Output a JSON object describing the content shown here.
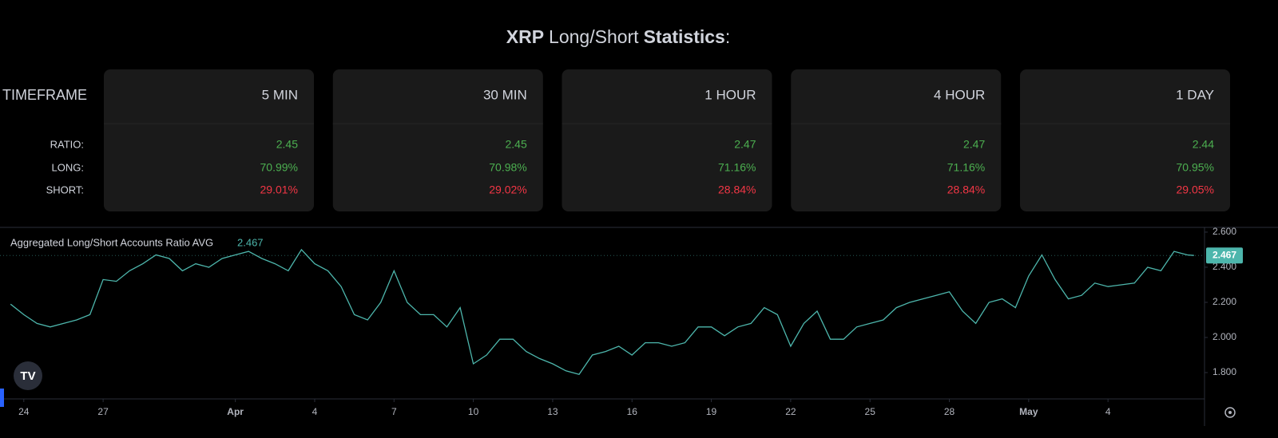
{
  "header": {
    "title_parts": [
      "XRP",
      "Long/Short",
      "Statistics",
      ":"
    ]
  },
  "table": {
    "header_label": "TIMEFRAME",
    "row_labels": [
      "RATIO:",
      "LONG:",
      "SHORT:"
    ],
    "row_colors": [
      "#4caf50",
      "#4caf50",
      "#f23645"
    ],
    "columns": [
      {
        "timeframe": "5 MIN",
        "values": [
          "2.45",
          "70.99%",
          "29.01%"
        ]
      },
      {
        "timeframe": "30 MIN",
        "values": [
          "2.45",
          "70.98%",
          "29.02%"
        ]
      },
      {
        "timeframe": "1 HOUR",
        "values": [
          "2.47",
          "71.16%",
          "28.84%"
        ]
      },
      {
        "timeframe": "4 HOUR",
        "values": [
          "2.47",
          "71.16%",
          "28.84%"
        ]
      },
      {
        "timeframe": "1 DAY",
        "values": [
          "2.44",
          "70.95%",
          "29.05%"
        ]
      }
    ]
  },
  "chart_data": {
    "type": "line",
    "title": "Aggregated Long/Short Accounts Ratio AVG",
    "last_value": 2.467,
    "color": "#4db6ac",
    "x": [
      -0.5,
      0,
      0.5,
      1,
      1.5,
      2,
      2.5,
      3,
      3.5,
      4,
      4.5,
      5,
      5.5,
      6,
      6.5,
      7,
      7.5,
      8,
      8.5,
      9,
      9.5,
      10,
      10.5,
      11,
      11.5,
      12,
      12.5,
      13,
      13.5,
      14,
      14.5,
      15,
      15.5,
      16,
      16.5,
      17,
      17.5,
      18,
      18.5,
      19,
      19.5,
      20,
      20.5,
      21,
      21.5,
      22,
      22.5,
      23,
      23.5,
      24,
      24.5,
      25,
      25.5,
      26,
      26.5,
      27,
      27.5,
      28,
      28.5,
      29,
      29.5,
      30,
      30.5,
      31,
      31.5,
      32,
      32.5,
      33,
      33.5,
      34,
      34.5,
      35,
      35.5,
      36,
      36.5,
      37,
      37.5,
      38,
      38.5,
      39,
      39.5,
      40,
      40.5,
      41,
      41.5,
      42,
      42.5,
      43,
      43.5,
      44,
      44.25
    ],
    "values": [
      2.19,
      2.13,
      2.08,
      2.06,
      2.08,
      2.1,
      2.13,
      2.33,
      2.32,
      2.38,
      2.42,
      2.47,
      2.45,
      2.38,
      2.42,
      2.4,
      2.45,
      2.47,
      2.49,
      2.45,
      2.42,
      2.38,
      2.5,
      2.42,
      2.38,
      2.29,
      2.13,
      2.1,
      2.2,
      2.38,
      2.2,
      2.13,
      2.13,
      2.06,
      2.17,
      1.85,
      1.9,
      1.99,
      1.99,
      1.92,
      1.88,
      1.85,
      1.81,
      1.79,
      1.9,
      1.92,
      1.95,
      1.9,
      1.97,
      1.97,
      1.95,
      1.97,
      2.06,
      2.06,
      2.01,
      2.06,
      2.08,
      2.17,
      2.13,
      1.95,
      2.08,
      2.15,
      1.99,
      1.99,
      2.06,
      2.08,
      2.1,
      2.17,
      2.2,
      2.22,
      2.24,
      2.26,
      2.15,
      2.08,
      2.2,
      2.22,
      2.17,
      2.35,
      2.47,
      2.33,
      2.22,
      2.24,
      2.31,
      2.29,
      2.3,
      2.31,
      2.4,
      2.38,
      2.49,
      2.47,
      2.467
    ],
    "xlim": [
      -0.9,
      44.65
    ],
    "xticks": [
      {
        "value": 0,
        "label": "24"
      },
      {
        "value": 3,
        "label": "27"
      },
      {
        "value": 8,
        "label": "Apr"
      },
      {
        "value": 11,
        "label": "4"
      },
      {
        "value": 14,
        "label": "7"
      },
      {
        "value": 17,
        "label": "10"
      },
      {
        "value": 20,
        "label": "13"
      },
      {
        "value": 23,
        "label": "16"
      },
      {
        "value": 26,
        "label": "19"
      },
      {
        "value": 29,
        "label": "22"
      },
      {
        "value": 32,
        "label": "25"
      },
      {
        "value": 35,
        "label": "28"
      },
      {
        "value": 38,
        "label": "May"
      },
      {
        "value": 41,
        "label": "4"
      }
    ],
    "ylim": [
      1.65,
      2.627
    ],
    "yticks": [
      {
        "value": 1.8,
        "label": "1.800"
      },
      {
        "value": 2.0,
        "label": "2.000"
      },
      {
        "value": 2.2,
        "label": "2.200"
      },
      {
        "value": 2.4,
        "label": "2.400"
      },
      {
        "value": 2.6,
        "label": "2.600"
      }
    ]
  }
}
